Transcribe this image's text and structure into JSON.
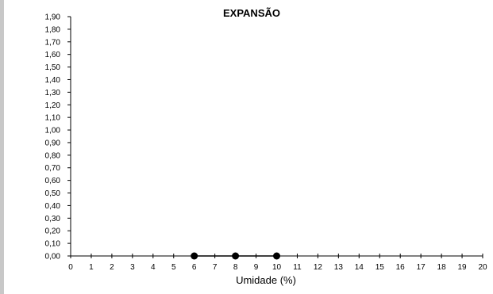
{
  "chart_data": {
    "type": "scatter",
    "title": "EXPANSÃO",
    "xlabel": "Umidade (%)",
    "ylabel": "",
    "xlim": [
      0,
      20
    ],
    "ylim": [
      0.0,
      1.9
    ],
    "x_ticks": [
      "0",
      "1",
      "2",
      "3",
      "4",
      "5",
      "6",
      "7",
      "8",
      "9",
      "10",
      "11",
      "12",
      "13",
      "14",
      "15",
      "16",
      "17",
      "18",
      "19",
      "20"
    ],
    "y_ticks": [
      "0,00",
      "0,10",
      "0,20",
      "0,30",
      "0,40",
      "0,50",
      "0,60",
      "0,70",
      "0,80",
      "0,90",
      "1,00",
      "1,10",
      "1,20",
      "1,30",
      "1,40",
      "1,50",
      "1,60",
      "1,70",
      "1,80",
      "1,90"
    ],
    "grid": false,
    "series": [
      {
        "x": [
          6,
          8,
          10
        ],
        "y": [
          0.0,
          0.0,
          0.0
        ]
      }
    ],
    "colors": {
      "marker": "#000000",
      "axis": "#000000",
      "background": "#ffffff"
    }
  }
}
